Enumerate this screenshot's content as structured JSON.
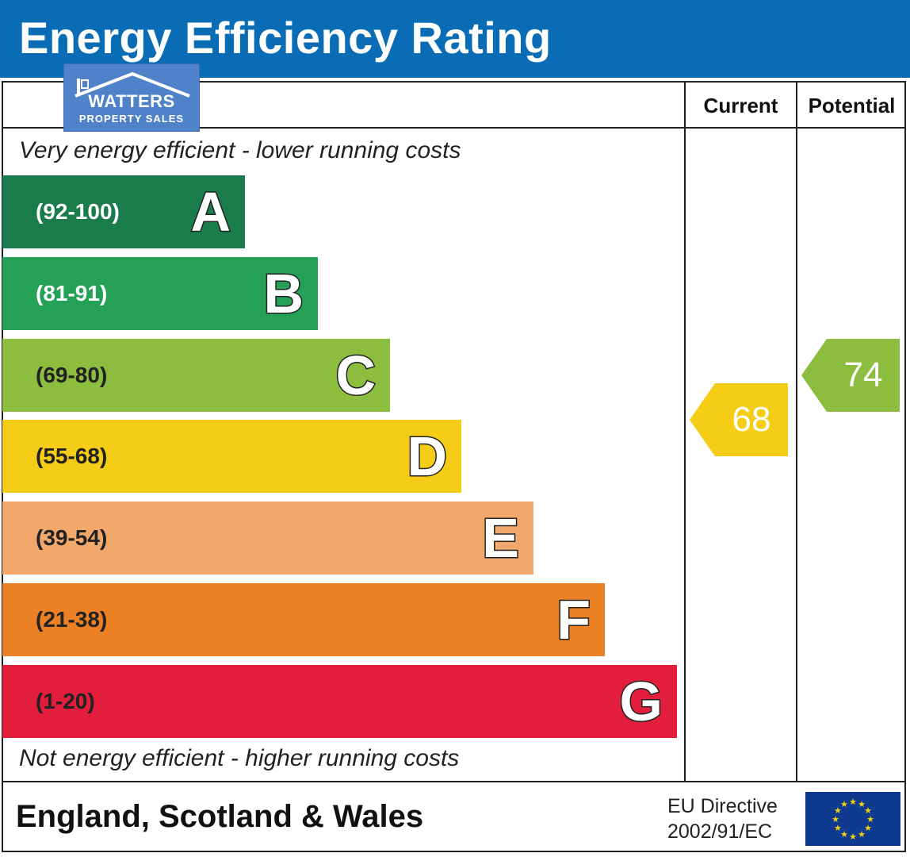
{
  "header": {
    "title": "Energy Efficiency Rating"
  },
  "logo": {
    "name": "WATTERS",
    "subtitle": "PROPERTY SALES"
  },
  "columns": {
    "current": "Current",
    "potential": "Potential"
  },
  "notes": {
    "top": "Very energy efficient - lower running costs",
    "bottom": "Not energy efficient - higher running costs"
  },
  "chart_data": {
    "type": "bar",
    "title": "Energy Efficiency Rating",
    "bands": [
      {
        "letter": "A",
        "range": "(92-100)",
        "color": "#1a7c4a",
        "text_color": "#ffffff"
      },
      {
        "letter": "B",
        "range": "(81-91)",
        "color": "#24a157",
        "text_color": "#ffffff"
      },
      {
        "letter": "C",
        "range": "(69-80)",
        "color": "#8dbd3f",
        "text_color": "#222222"
      },
      {
        "letter": "D",
        "range": "(55-68)",
        "color": "#f5cc16",
        "text_color": "#222222"
      },
      {
        "letter": "E",
        "range": "(39-54)",
        "color": "#f2a86a",
        "text_color": "#222222"
      },
      {
        "letter": "F",
        "range": "(21-38)",
        "color": "#ec8025",
        "text_color": "#222222"
      },
      {
        "letter": "G",
        "range": "(1-20)",
        "color": "#e31d3c",
        "text_color": "#222222"
      }
    ],
    "current": {
      "value": 68,
      "band": "D",
      "color": "#f5cc16"
    },
    "potential": {
      "value": 74,
      "band": "C",
      "color": "#8dbd3f"
    }
  },
  "footer": {
    "region": "England, Scotland & Wales",
    "directive_line1": "EU Directive",
    "directive_line2": "2002/91/EC"
  }
}
